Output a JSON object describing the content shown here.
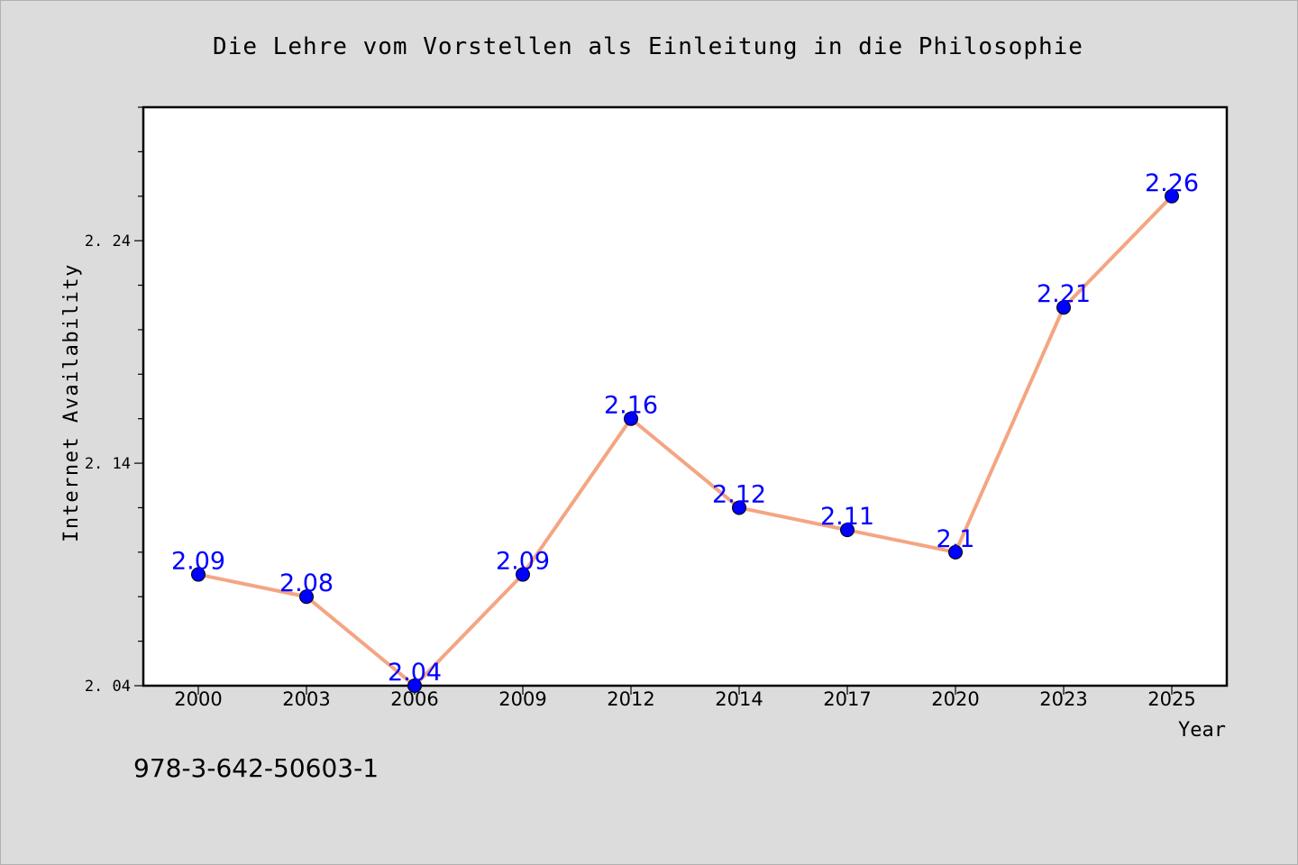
{
  "chart_data": {
    "type": "line",
    "title": "Die Lehre vom Vorstellen als Einleitung in die Philosophie",
    "xlabel": "Year",
    "ylabel": "Internet Availability",
    "categories": [
      "2000",
      "2003",
      "2006",
      "2009",
      "2012",
      "2014",
      "2017",
      "2020",
      "2023",
      "2025"
    ],
    "series": [
      {
        "values": [
          2.09,
          2.08,
          2.04,
          2.09,
          2.16,
          2.12,
          2.11,
          2.1,
          2.21,
          2.26
        ],
        "labels": [
          "2.09",
          "2.08",
          "2.04",
          "2.09",
          "2.16",
          "2.12",
          "2.11",
          "2.1",
          "2.21",
          "2.26"
        ]
      }
    ],
    "ylim": [
      2.04,
      2.3
    ],
    "yticks": [
      2.04,
      2.14,
      2.24
    ],
    "ytick_labels": [
      "2.04",
      "2.14",
      "2.24"
    ],
    "line_color": "#f4a582",
    "marker_color": "#0000ff",
    "label_color": "#0000ff",
    "grid": false,
    "legend": "none"
  },
  "footer": {
    "isbn": "978-3-642-50603-1"
  }
}
